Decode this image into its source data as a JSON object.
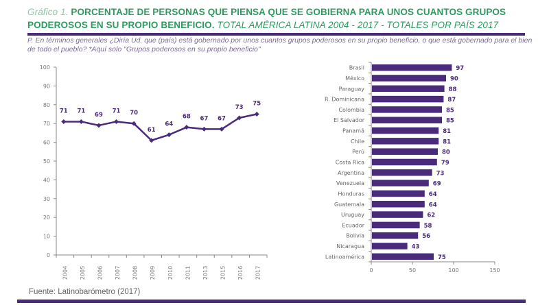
{
  "header": {
    "lead": "Gráfico 1.",
    "title_bold": "PORCENTAJE DE PERSONAS QUE PIENSA QUE SE GOBIERNA PARA UNOS CUANTOS GRUPOS PODEROSOS EN SU PROPIO BENEFICIO.",
    "title_tail": "TOTAL AMÉRICA LATINA 2004 - 2017 - TOTALES POR PAÍS 2017"
  },
  "question": "P. En términos generales ¿Diría Ud. que (país) está gobernado por unos cuantos grupos poderosos en su propio beneficio, o que está gobernado para el bien de todo el pueblo? *Aquí solo \"Grupos poderosos en su propio beneficio\"",
  "source": "Fuente: Latinobarómetro (2017)",
  "colors": {
    "series": "#4a2a7a",
    "title": "#2e9a5f",
    "axis": "#888888"
  },
  "chart_data": [
    {
      "type": "line",
      "title": "Total América Latina 2004 - 2017",
      "xlabel": "",
      "ylabel": "",
      "x": [
        "2004",
        "2005",
        "2006",
        "2007",
        "2008",
        "2009",
        "2010",
        "2011",
        "2013",
        "2015",
        "2016",
        "2017"
      ],
      "series": [
        {
          "name": "Grupos poderosos en su propio beneficio",
          "values": [
            71,
            71,
            69,
            71,
            70,
            61,
            64,
            68,
            67,
            67,
            73,
            75
          ]
        }
      ],
      "ylim": [
        0,
        100
      ],
      "yticks": [
        0,
        10,
        20,
        30,
        40,
        50,
        60,
        70,
        80,
        90,
        100
      ],
      "grid": false,
      "data_labels": true
    },
    {
      "type": "bar",
      "orientation": "horizontal",
      "title": "Totales por país 2017",
      "categories": [
        "Brasil",
        "México",
        "Paraguay",
        "R. Dominicana",
        "Colombia",
        "El Salvador",
        "Panamá",
        "Chile",
        "Perú",
        "Costa Rica",
        "Argentina",
        "Venezuela",
        "Honduras",
        "Guatemala",
        "Uruguay",
        "Ecuador",
        "Bolivia",
        "Nicaragua",
        "Latinoamérica"
      ],
      "values": [
        97,
        90,
        88,
        87,
        85,
        85,
        81,
        81,
        80,
        79,
        73,
        69,
        64,
        64,
        62,
        58,
        56,
        43,
        75
      ],
      "xlim": [
        0,
        150
      ],
      "xticks": [
        0,
        50,
        100,
        150
      ],
      "grid": false,
      "data_labels": true
    }
  ]
}
